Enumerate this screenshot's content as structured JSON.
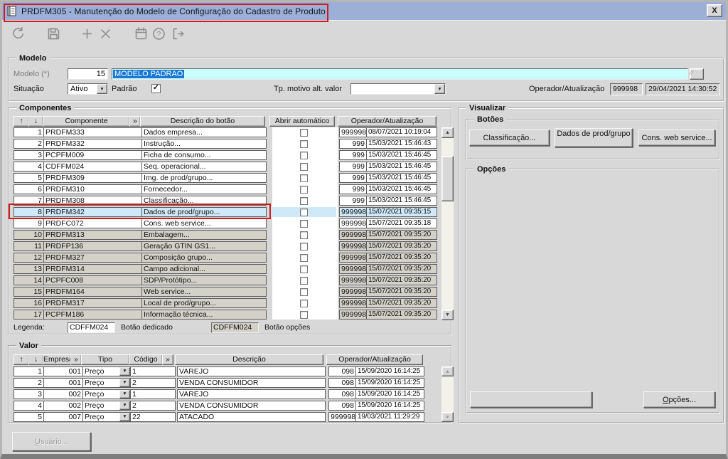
{
  "window": {
    "title": "PRDFM305 - Manutenção do Modelo de Configuração do Cadastro de Produto",
    "close_label": "X"
  },
  "toolbar": {
    "icons": [
      "undo-icon",
      "save-icon",
      "add-icon",
      "delete-icon",
      "calendar-icon",
      "help-icon",
      "exit-icon"
    ]
  },
  "glyphs": {
    "check": "✓",
    "dropdown": "▼",
    "scroll_up": "▲",
    "scroll_down": "▼",
    "lookup": "∕∕",
    "up_arrow": "↑",
    "down_arrow": "↓",
    "chevron": "»"
  },
  "modelo": {
    "group_label": "Modelo",
    "modelo_label": "Modelo (*)",
    "modelo_number": "15",
    "modelo_name": "MODELO PADRAO",
    "situacao_label": "Situação",
    "situacao_value": "Ativo",
    "padrao_label": "Padrão",
    "padrao_checked": true,
    "tp_motivo_label": "Tp. motivo alt. valor",
    "tp_motivo_value": "",
    "operador_label": "Operador/Atualização",
    "operador_value": "999998",
    "atualizacao_value": "29/04/2021 14:30:52"
  },
  "componentes": {
    "group_label": "Componentes",
    "headers": {
      "up": "↑",
      "down": "↓",
      "componente": "Componente",
      "chevron": "»",
      "descricao": "Descrição do botão",
      "abrir": "Abrir automático",
      "operador": "Operador/Atualização"
    },
    "rows": [
      {
        "num": "1",
        "componente": "PRDFM333",
        "descricao": "Dados empresa...",
        "abrir": false,
        "operador": "999998",
        "atualizacao": "08/07/2021 10:19:04",
        "shade": "white"
      },
      {
        "num": "2",
        "componente": "PRDFM332",
        "descricao": "Instrução...",
        "abrir": false,
        "operador": "999",
        "atualizacao": "15/03/2021 15:46:43",
        "shade": "white"
      },
      {
        "num": "3",
        "componente": "PCPFM009",
        "descricao": "Ficha de consumo...",
        "abrir": false,
        "operador": "999",
        "atualizacao": "15/03/2021 15:46:45",
        "shade": "white"
      },
      {
        "num": "4",
        "componente": "CDFFM024",
        "descricao": "Seq. operacional...",
        "abrir": false,
        "operador": "999",
        "atualizacao": "15/03/2021 15:46:45",
        "shade": "white"
      },
      {
        "num": "5",
        "componente": "PRDFM309",
        "descricao": "Img. de prod/grupo...",
        "abrir": false,
        "operador": "999",
        "atualizacao": "15/03/2021 15:46:45",
        "shade": "white"
      },
      {
        "num": "6",
        "componente": "PRDFM310",
        "descricao": "Fornecedor...",
        "abrir": false,
        "operador": "999",
        "atualizacao": "15/03/2021 15:46:45",
        "shade": "white"
      },
      {
        "num": "7",
        "componente": "PRDFM308",
        "descricao": "Classificação...",
        "abrir": false,
        "operador": "999",
        "atualizacao": "15/03/2021 15:46:45",
        "shade": "white"
      },
      {
        "num": "8",
        "componente": "PRDFM342",
        "descricao": "Dados de prod/grupo...",
        "abrir": false,
        "operador": "999998",
        "atualizacao": "15/07/2021 09:35:15",
        "shade": "white",
        "selected": true,
        "annotated": true
      },
      {
        "num": "9",
        "componente": "PRDFC072",
        "descricao": "Cons. web service...",
        "abrir": false,
        "operador": "999998",
        "atualizacao": "15/07/2021 09:35:18",
        "shade": "white"
      },
      {
        "num": "10",
        "componente": "PRDFM313",
        "descricao": "Embalagem...",
        "abrir": false,
        "operador": "999998",
        "atualizacao": "15/07/2021 09:35:20",
        "shade": "gray"
      },
      {
        "num": "11",
        "componente": "PRDFP136",
        "descricao": "Geração GTIN GS1...",
        "abrir": false,
        "operador": "999998",
        "atualizacao": "15/07/2021 09:35:20",
        "shade": "gray"
      },
      {
        "num": "12",
        "componente": "PRDFM327",
        "descricao": "Composição grupo...",
        "abrir": false,
        "operador": "999998",
        "atualizacao": "15/07/2021 09:35:20",
        "shade": "gray"
      },
      {
        "num": "13",
        "componente": "PRDFM314",
        "descricao": "Campo adicional...",
        "abrir": false,
        "operador": "999998",
        "atualizacao": "15/07/2021 09:35:20",
        "shade": "gray"
      },
      {
        "num": "14",
        "componente": "PCPFC008",
        "descricao": "SDP/Protótipo...",
        "abrir": false,
        "operador": "999998",
        "atualizacao": "15/07/2021 09:35:20",
        "shade": "gray"
      },
      {
        "num": "15",
        "componente": "PRDFM164",
        "descricao": "Web service...",
        "abrir": false,
        "operador": "999998",
        "atualizacao": "15/07/2021 09:35:20",
        "shade": "gray"
      },
      {
        "num": "16",
        "componente": "PRDFM317",
        "descricao": "Local de prod/grupo...",
        "abrir": false,
        "operador": "999998",
        "atualizacao": "15/07/2021 09:35:20",
        "shade": "gray"
      },
      {
        "num": "17",
        "componente": "PCPFM186",
        "descricao": "Informação técnica...",
        "abrir": false,
        "operador": "999998",
        "atualizacao": "15/07/2021 09:35:20",
        "shade": "gray"
      }
    ],
    "legend": {
      "label": "Legenda:",
      "items": [
        {
          "sample": "CDFFM024",
          "label": "Botão dedicado",
          "shade": "white"
        },
        {
          "sample": "CDFFM024",
          "label": "Botão opções",
          "shade": "gray"
        }
      ]
    }
  },
  "visualizar": {
    "group_label": "Visualizar",
    "botoes_label": "Botões",
    "buttons": [
      {
        "label": "Classificação..."
      },
      {
        "label": "Dados de prod/grupo"
      },
      {
        "label": "Cons. web service..."
      }
    ],
    "opcoes_label": "Opções",
    "blank_button": "",
    "opcoes_button": "Opções..."
  },
  "valor": {
    "group_label": "Valor",
    "headers": {
      "up": "↑",
      "down": "↓",
      "empresa": "Empresa",
      "chevron": "»",
      "tipo": "Tipo",
      "codigo": "Código",
      "chevron2": "»",
      "descricao": "Descrição",
      "operador": "Operador/Atualização"
    },
    "rows": [
      {
        "num": "1",
        "empresa": "001",
        "tipo": "Preço",
        "codigo": "1",
        "descricao": "VAREJO",
        "operador": "098",
        "atualizacao": "15/09/2020 16:14:25"
      },
      {
        "num": "2",
        "empresa": "001",
        "tipo": "Preço",
        "codigo": "2",
        "descricao": "VENDA CONSUMIDOR",
        "operador": "098",
        "atualizacao": "15/09/2020 16:14:25"
      },
      {
        "num": "3",
        "empresa": "002",
        "tipo": "Preço",
        "codigo": "1",
        "descricao": "VAREJO",
        "operador": "098",
        "atualizacao": "15/09/2020 16:14:25"
      },
      {
        "num": "4",
        "empresa": "002",
        "tipo": "Preço",
        "codigo": "2",
        "descricao": "VENDA CONSUMIDOR",
        "operador": "098",
        "atualizacao": "15/09/2020 16:14:25"
      },
      {
        "num": "5",
        "empresa": "007",
        "tipo": "Preço",
        "codigo": "22",
        "descricao": "ATACADO",
        "operador": "999998",
        "atualizacao": "19/03/2021 11:29:29"
      }
    ]
  },
  "footer": {
    "usuario_button": "Usuário..."
  },
  "colors": {
    "titlebar": "#9cafd7",
    "window_bg": "#d8d8d8",
    "annotation": "#cf1d1d",
    "cyan_field": "#c9ffff",
    "selection": "#1779d6",
    "selected_row": "#cfe9f9",
    "gray_row": "#d4d1c9"
  }
}
